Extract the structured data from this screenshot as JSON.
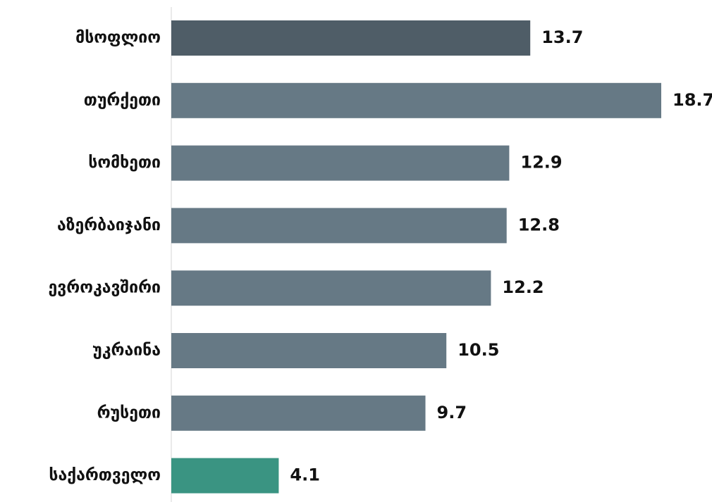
{
  "chart_data": {
    "type": "bar",
    "orientation": "horizontal",
    "categories": [
      "მსოფლიო",
      "თურქეთი",
      "სომხეთი",
      "აზერბაიჯანი",
      "ევროკავშირი",
      "უკრაინა",
      "რუსეთი",
      "საქართველო"
    ],
    "values": [
      13.7,
      18.7,
      12.9,
      12.8,
      12.2,
      10.5,
      9.7,
      4.1
    ],
    "value_labels": [
      "13.7",
      "18.7",
      "12.9",
      "12.8",
      "12.2",
      "10.5",
      "9.7",
      "4.1"
    ],
    "bar_colors": [
      "#4f5d67",
      "#667985",
      "#667985",
      "#667985",
      "#667985",
      "#667985",
      "#667985",
      "#3a9482"
    ],
    "xlim": [
      0,
      18.7
    ],
    "grid": false,
    "legend": "none"
  }
}
